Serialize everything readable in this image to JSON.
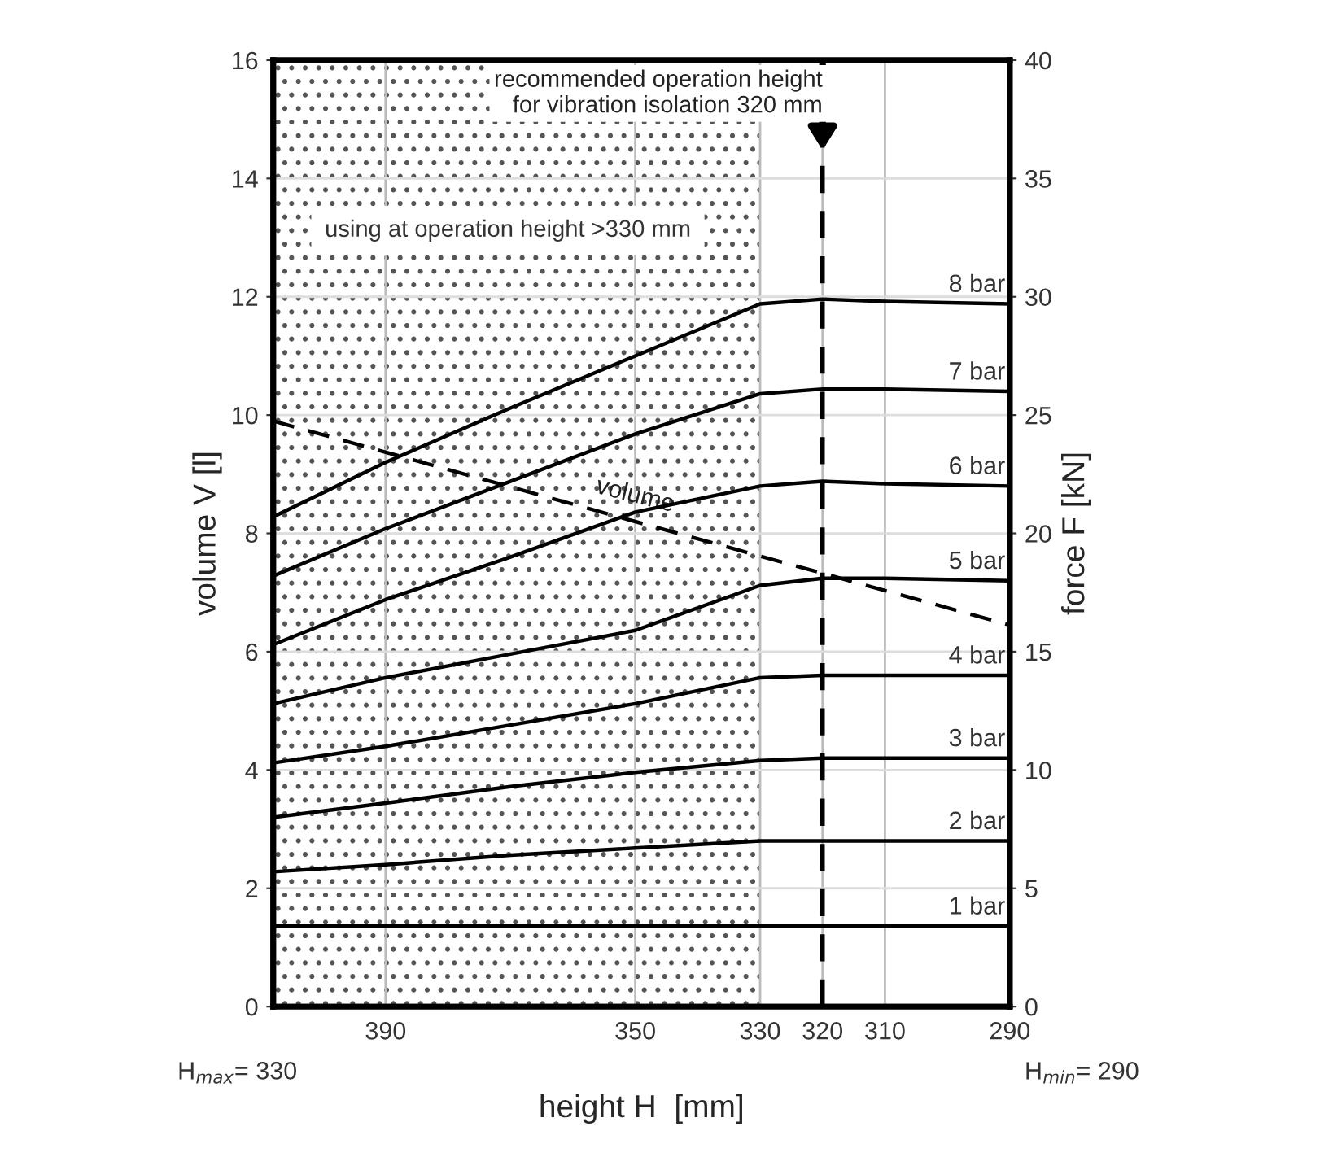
{
  "chart_data": {
    "type": "line",
    "xlabel": "height H  [mm]",
    "ylabel": "volume V [l]",
    "y2label": "force F [kN]",
    "x": [
      408,
      390,
      370,
      350,
      330,
      320,
      310,
      290
    ],
    "series": [
      {
        "name": "volume",
        "color": "#000000",
        "axis": "y",
        "line_style": "dashed",
        "x": [
          408,
          350,
          290
        ],
        "values": [
          9.9,
          8.2,
          6.45
        ]
      },
      {
        "name": "8 bar",
        "color": "#000000",
        "axis": "y2",
        "values": [
          20.7,
          23.0,
          25.3,
          27.5,
          29.7,
          29.9,
          29.8,
          29.7
        ]
      },
      {
        "name": "7 bar",
        "color": "#000000",
        "axis": "y2",
        "values": [
          18.2,
          20.2,
          22.2,
          24.2,
          25.9,
          26.1,
          26.1,
          26.0
        ]
      },
      {
        "name": "6 bar",
        "color": "#000000",
        "axis": "y2",
        "values": [
          15.3,
          17.2,
          19.0,
          20.9,
          22.0,
          22.2,
          22.1,
          22.0
        ]
      },
      {
        "name": "5 bar",
        "color": "#000000",
        "axis": "y2",
        "values": [
          12.8,
          13.9,
          14.9,
          15.9,
          17.8,
          18.1,
          18.1,
          18.0
        ]
      },
      {
        "name": "4 bar",
        "color": "#000000",
        "axis": "y2",
        "values": [
          10.3,
          11.0,
          11.9,
          12.8,
          13.9,
          14.0,
          14.0,
          14.0
        ]
      },
      {
        "name": "3 bar",
        "color": "#000000",
        "axis": "y2",
        "values": [
          8.0,
          8.6,
          9.3,
          9.9,
          10.4,
          10.5,
          10.5,
          10.5
        ]
      },
      {
        "name": "2 bar",
        "color": "#000000",
        "axis": "y2",
        "values": [
          5.7,
          6.0,
          6.4,
          6.7,
          7.0,
          7.0,
          7.0,
          7.0
        ]
      },
      {
        "name": "1 bar",
        "color": "#000000",
        "axis": "y2",
        "values": [
          3.4,
          3.4,
          3.4,
          3.4,
          3.4,
          3.4,
          3.4,
          3.4
        ]
      }
    ],
    "xlim": [
      408,
      290
    ],
    "xticks": [
      390,
      350,
      330,
      320,
      310,
      290
    ],
    "ylim": [
      0,
      16
    ],
    "yticks": [
      0,
      2,
      4,
      6,
      8,
      10,
      12,
      14,
      16
    ],
    "y2lim": [
      0,
      40
    ],
    "y2ticks": [
      0,
      5,
      10,
      15,
      20,
      25,
      30,
      35,
      40
    ],
    "ref_lines": [
      {
        "axis": "x",
        "value": 320,
        "label": "recommended operation height\nfor vibration isolation 320 mm",
        "color": "#000000",
        "line_style": "dashed"
      }
    ],
    "bands": [
      {
        "axis": "x",
        "from": 408,
        "to": 330,
        "color": "#555555"
      }
    ],
    "annotations": [
      "using at operation height >330 mm",
      "H$_{max}$= 330",
      "H$_{min}$= 290"
    ],
    "grid": true,
    "marker": "none",
    "line_style": "solid"
  }
}
